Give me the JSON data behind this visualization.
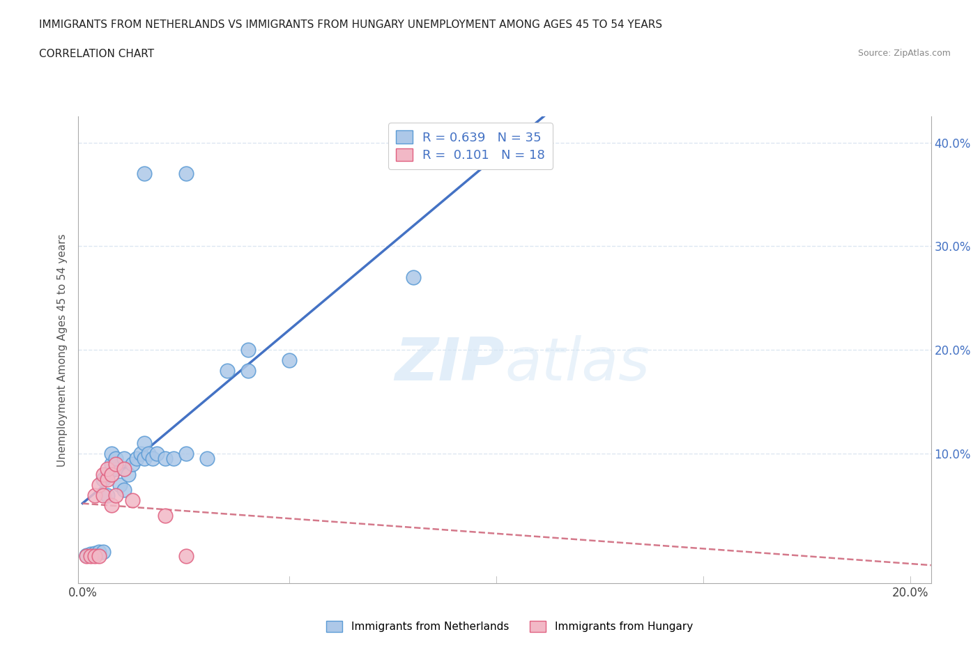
{
  "title_line1": "IMMIGRANTS FROM NETHERLANDS VS IMMIGRANTS FROM HUNGARY UNEMPLOYMENT AMONG AGES 45 TO 54 YEARS",
  "title_line2": "CORRELATION CHART",
  "source_text": "Source: ZipAtlas.com",
  "ylabel": "Unemployment Among Ages 45 to 54 years",
  "watermark_zip": "ZIP",
  "watermark_atlas": "atlas",
  "netherlands_color": "#adc8e8",
  "netherlands_edge_color": "#5b9bd5",
  "hungary_color": "#f2b8c6",
  "hungary_edge_color": "#e06080",
  "netherlands_line_color": "#4472c4",
  "hungary_line_color": "#d4788a",
  "tick_color_blue": "#4472c4",
  "background_color": "#ffffff",
  "grid_color": "#dce6f1",
  "nl_x": [
    0.001,
    0.002,
    0.003,
    0.004,
    0.005,
    0.005,
    0.006,
    0.006,
    0.007,
    0.007,
    0.008,
    0.008,
    0.009,
    0.01,
    0.01,
    0.011,
    0.012,
    0.013,
    0.014,
    0.015,
    0.015,
    0.016,
    0.017,
    0.018,
    0.02,
    0.022,
    0.025,
    0.03,
    0.035,
    0.04,
    0.015,
    0.025,
    0.04,
    0.05,
    0.08
  ],
  "nl_y": [
    0.002,
    0.003,
    0.004,
    0.005,
    0.005,
    0.075,
    0.06,
    0.08,
    0.09,
    0.1,
    0.085,
    0.095,
    0.07,
    0.065,
    0.095,
    0.08,
    0.09,
    0.095,
    0.1,
    0.095,
    0.11,
    0.1,
    0.095,
    0.1,
    0.095,
    0.095,
    0.1,
    0.095,
    0.18,
    0.18,
    0.37,
    0.37,
    0.2,
    0.19,
    0.27
  ],
  "hu_x": [
    0.001,
    0.002,
    0.003,
    0.003,
    0.004,
    0.004,
    0.005,
    0.005,
    0.006,
    0.006,
    0.007,
    0.007,
    0.008,
    0.008,
    0.01,
    0.012,
    0.02,
    0.025
  ],
  "hu_y": [
    0.001,
    0.001,
    0.001,
    0.06,
    0.001,
    0.07,
    0.06,
    0.08,
    0.075,
    0.085,
    0.05,
    0.08,
    0.06,
    0.09,
    0.085,
    0.055,
    0.04,
    0.001
  ],
  "xlim_min": -0.001,
  "xlim_max": 0.205,
  "ylim_min": -0.025,
  "ylim_max": 0.425,
  "xtick_pos": [
    0.0,
    0.05,
    0.1,
    0.15,
    0.2
  ],
  "xtick_labels": [
    "0.0%",
    "",
    "",
    "",
    "20.0%"
  ],
  "ytick_pos": [
    0.0,
    0.1,
    0.2,
    0.3,
    0.4
  ],
  "ytick_labels_right": [
    "",
    "10.0%",
    "20.0%",
    "30.0%",
    "40.0%"
  ],
  "legend_r1": "R = 0.639   N = 35",
  "legend_r2": "R =  0.101   N = 18",
  "bottom_legend1": "Immigrants from Netherlands",
  "bottom_legend2": "Immigrants from Hungary"
}
